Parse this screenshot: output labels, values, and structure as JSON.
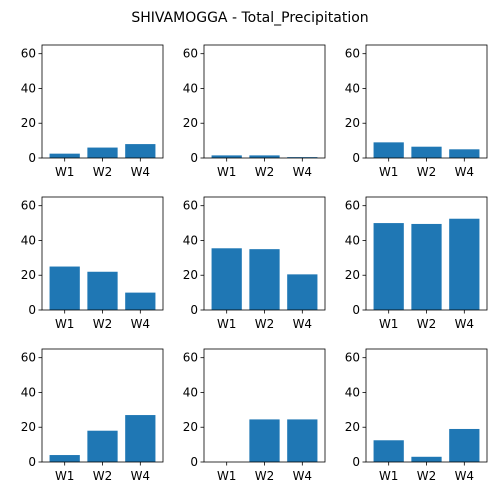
{
  "chart_data": {
    "title": "SHIVAMOGGA - Total_Precipitation",
    "type": "bar",
    "bar_color": "#1f77b4",
    "ylim": [
      0,
      65
    ],
    "yticks": [
      0,
      20,
      40,
      60
    ],
    "subplots": [
      {
        "categories": [
          "W1",
          "W2",
          "W4"
        ],
        "values": [
          2.5,
          6.0,
          8.0
        ]
      },
      {
        "categories": [
          "W1",
          "W2",
          "W4"
        ],
        "values": [
          1.5,
          1.5,
          0.5
        ]
      },
      {
        "categories": [
          "W1",
          "W2",
          "W4"
        ],
        "values": [
          9.0,
          6.5,
          5.0
        ]
      },
      {
        "categories": [
          "W1",
          "W2",
          "W4"
        ],
        "values": [
          25.0,
          22.0,
          10.0
        ]
      },
      {
        "categories": [
          "W1",
          "W2",
          "W4"
        ],
        "values": [
          35.5,
          35.0,
          20.5
        ]
      },
      {
        "categories": [
          "W1",
          "W2",
          "W4"
        ],
        "values": [
          50.0,
          49.5,
          52.5
        ]
      },
      {
        "categories": [
          "W1",
          "W2",
          "W4"
        ],
        "values": [
          4.0,
          18.0,
          27.0
        ]
      },
      {
        "categories": [
          "W1",
          "W2",
          "W4"
        ],
        "values": [
          0.0,
          24.5,
          24.5
        ]
      },
      {
        "categories": [
          "W1",
          "W2",
          "W4"
        ],
        "values": [
          12.5,
          3.0,
          19.0
        ]
      }
    ]
  }
}
